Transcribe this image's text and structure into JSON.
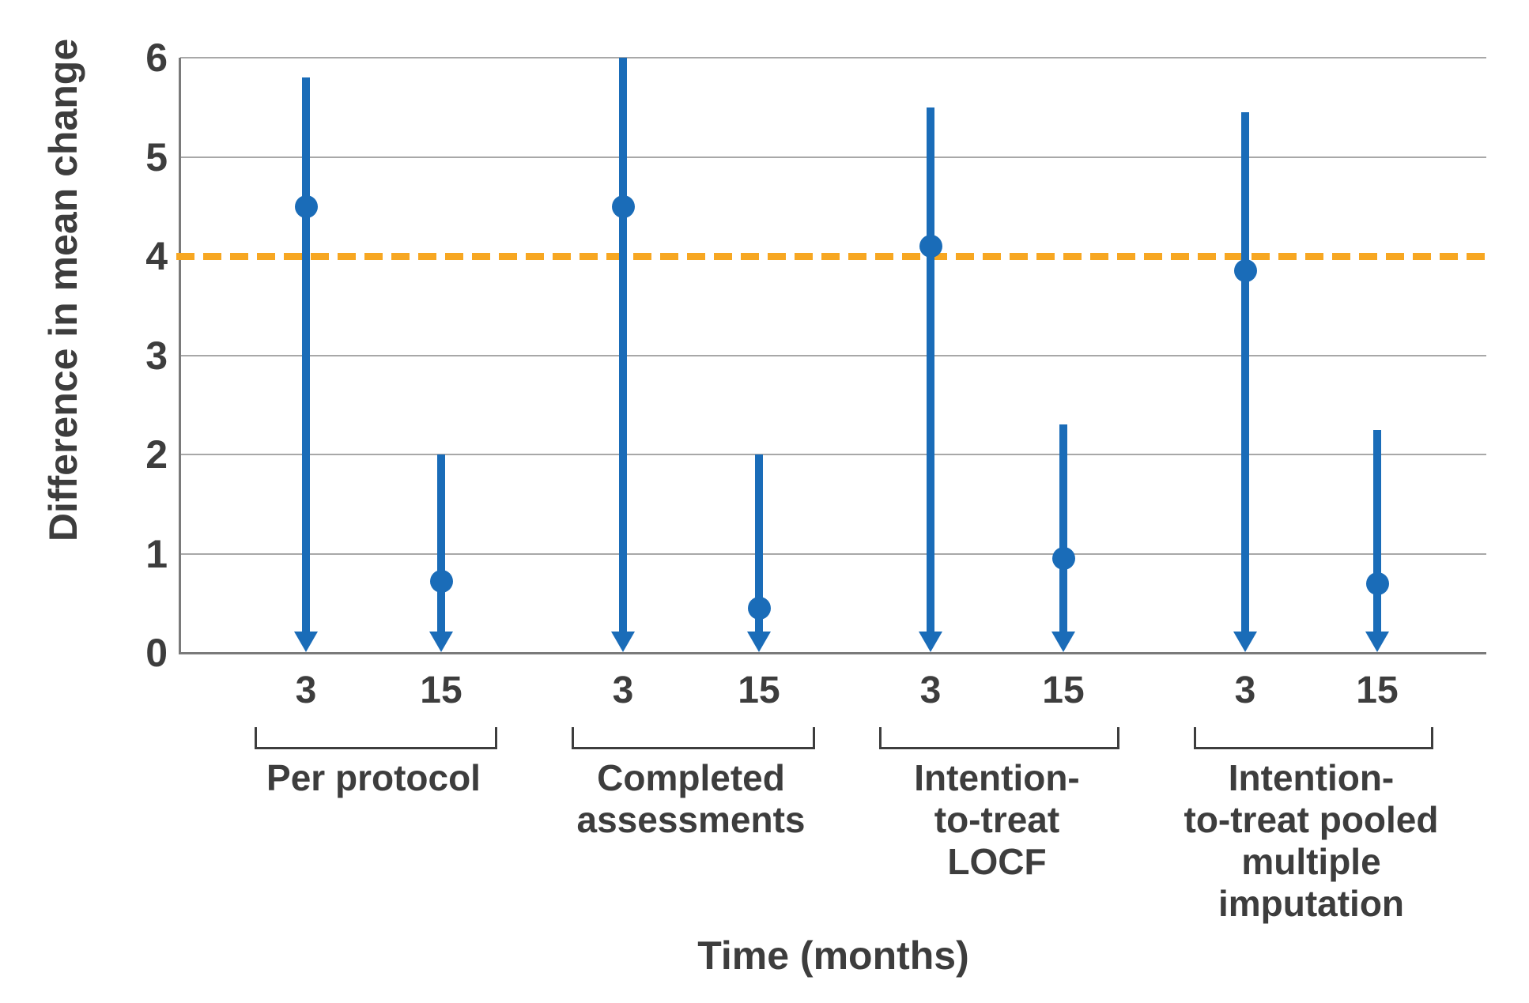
{
  "chart_data": {
    "type": "scatter",
    "subtype": "point-estimates-with-confidence-intervals",
    "title": "",
    "ylabel": "Difference in mean change",
    "xlabel": "Time (months)",
    "ylim": [
      0,
      6
    ],
    "yticks": [
      0,
      1,
      2,
      3,
      4,
      5,
      6
    ],
    "grid": "horizontal-only",
    "legend": "none",
    "reference_line": {
      "y": 4,
      "style": "dashed",
      "color": "#f7a722"
    },
    "arrow_note": "all lower confidence bounds extend below 0 and are drawn as downward arrows clipped at the baseline",
    "groups": [
      {
        "label": "Per protocol",
        "label_lines": [
          "Per protocol"
        ],
        "points": [
          {
            "time": "3",
            "estimate": 4.5,
            "ci_upper": 5.8,
            "ci_lower_clipped": true
          },
          {
            "time": "15",
            "estimate": 0.72,
            "ci_upper": 2.0,
            "ci_lower_clipped": true
          }
        ]
      },
      {
        "label": "Completed assessments",
        "label_lines": [
          "Completed",
          "assessments"
        ],
        "points": [
          {
            "time": "3",
            "estimate": 4.5,
            "ci_upper": 6.0,
            "ci_lower_clipped": true
          },
          {
            "time": "15",
            "estimate": 0.45,
            "ci_upper": 2.0,
            "ci_lower_clipped": true
          }
        ]
      },
      {
        "label": "Intention-to-treat LOCF",
        "label_lines": [
          "Intention-",
          "to-treat",
          "LOCF"
        ],
        "points": [
          {
            "time": "3",
            "estimate": 4.1,
            "ci_upper": 5.5,
            "ci_lower_clipped": true
          },
          {
            "time": "15",
            "estimate": 0.95,
            "ci_upper": 2.3,
            "ci_lower_clipped": true
          }
        ]
      },
      {
        "label": "Intention-to-treat pooled multiple imputation",
        "label_lines": [
          "Intention-",
          "to-treat pooled",
          "multiple",
          "imputation"
        ],
        "points": [
          {
            "time": "3",
            "estimate": 3.85,
            "ci_upper": 5.45,
            "ci_lower_clipped": true
          },
          {
            "time": "15",
            "estimate": 0.7,
            "ci_upper": 2.25,
            "ci_lower_clipped": true
          }
        ]
      }
    ],
    "colors": {
      "point_and_ci": "#1a6cb8",
      "reference_line": "#f7a722",
      "gridline": "#a8a8a8",
      "axis": "#7a7a7a",
      "text": "#3d3d3d"
    }
  }
}
